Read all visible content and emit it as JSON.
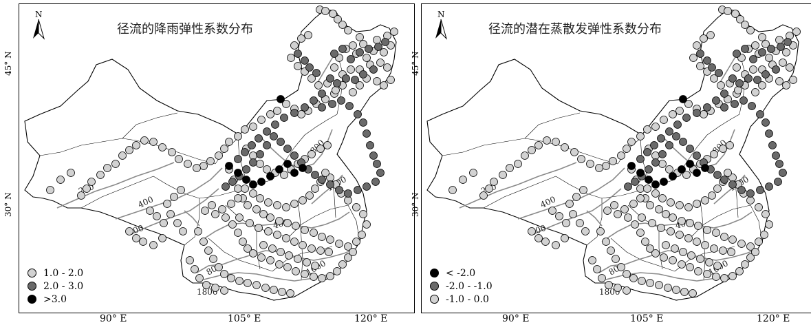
{
  "colors": {
    "light": "#d2d2d2",
    "mid": "#6a6a6a",
    "dark": "#000000",
    "contour": "#8a8a8a"
  },
  "panels": [
    {
      "title": "径流的降雨弹性系数分布",
      "legend": [
        {
          "label": "1.0 - 2.0",
          "color": "#d2d2d2"
        },
        {
          "label": "2.0 - 3.0",
          "color": "#6a6a6a"
        },
        {
          "label": ">3.0",
          "color": "#000000"
        }
      ]
    },
    {
      "title": "径流的潜在蒸散发弹性系数分布",
      "legend": [
        {
          "label": "< -2.0",
          "color": "#000000"
        },
        {
          "label": "-2.0 - -1.0",
          "color": "#6a6a6a"
        },
        {
          "label": "-1.0 - 0.0",
          "color": "#d2d2d2"
        }
      ]
    }
  ],
  "north_label": "N",
  "y_ticks": [
    "45° N",
    "30° N"
  ],
  "x_ticks": [
    "90° E",
    "105° E",
    "120° E"
  ],
  "isolines": [
    "200",
    "400",
    "600",
    "800",
    "400",
    "800",
    "1200",
    "1600",
    "1800"
  ]
}
